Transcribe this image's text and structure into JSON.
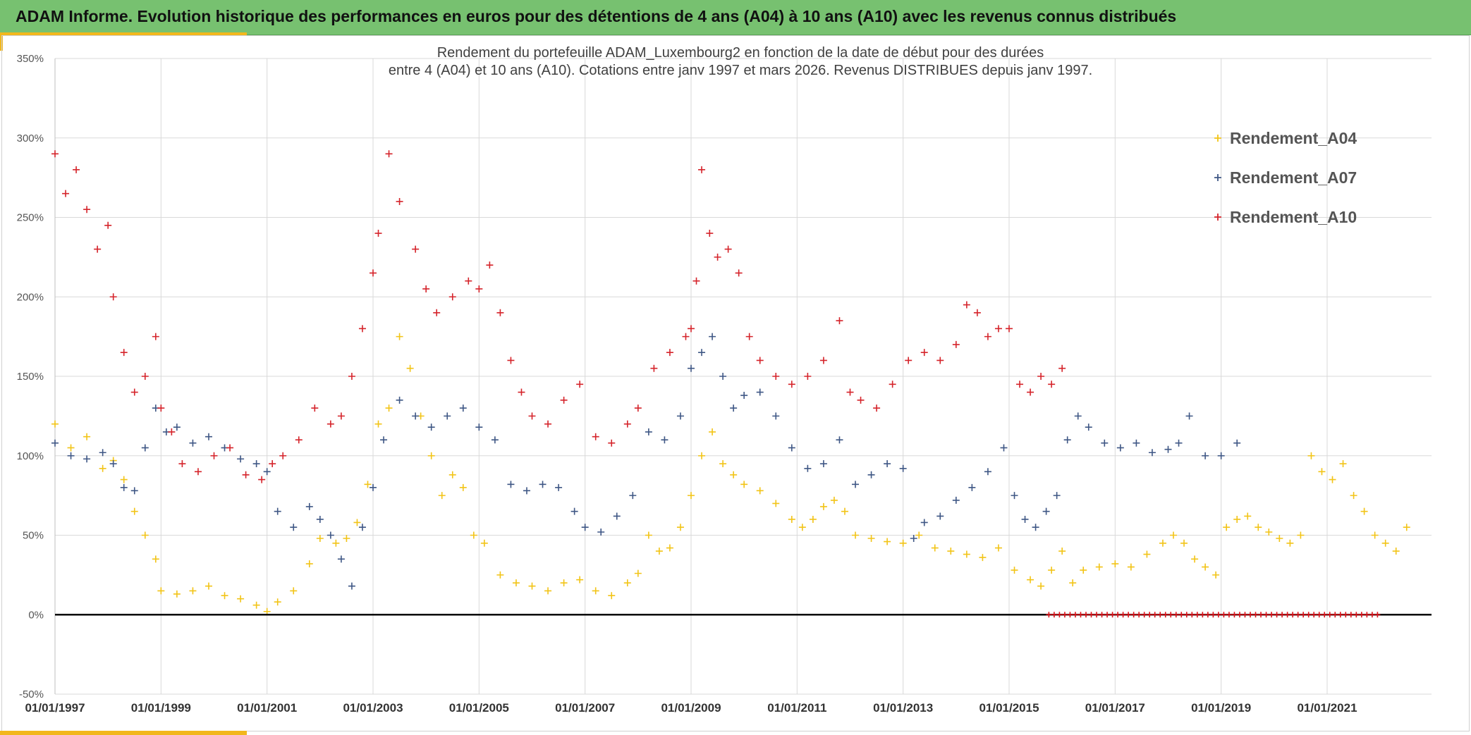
{
  "header": {
    "title": "ADAM Informe. Evolution historique des performances en euros pour des détentions de 4 ans (A04) à 10 ans (A10) avec les revenus connus distribués"
  },
  "chart_data": {
    "type": "scatter",
    "title_lines": [
      "Rendement du portefeuille ADAM_Luxembourg2  en fonction de la date de début pour des durées",
      "entre 4 (A04) et 10 ans (A10). Cotations entre janv 1997 et mars 2026. Revenus DISTRIBUES depuis janv 1997."
    ],
    "xlabel": "",
    "ylabel": "",
    "x_range": [
      1997.0,
      2022.0
    ],
    "ylim": [
      -50,
      350
    ],
    "y_ticks": [
      -50,
      0,
      50,
      100,
      150,
      200,
      250,
      300,
      350
    ],
    "y_tick_labels": [
      "-50%",
      "0%",
      "50%",
      "100%",
      "150%",
      "200%",
      "250%",
      "300%",
      "350%"
    ],
    "x_ticks": [
      1997,
      1999,
      2001,
      2003,
      2005,
      2007,
      2009,
      2011,
      2013,
      2015,
      2017,
      2019,
      2021
    ],
    "x_tick_labels": [
      "01/01/1997",
      "01/01/1999",
      "01/01/2001",
      "01/01/2003",
      "01/01/2005",
      "01/01/2007",
      "01/01/2009",
      "01/01/2011",
      "01/01/2013",
      "01/01/2015",
      "01/01/2017",
      "01/01/2019",
      "01/01/2021"
    ],
    "grid": true,
    "legend_position": "top-right",
    "marker": "+",
    "series": [
      {
        "name": "Rendement_A04",
        "color": "#f2c417",
        "x": [
          1997.0,
          1997.3,
          1997.6,
          1997.9,
          1998.1,
          1998.3,
          1998.5,
          1998.7,
          1998.9,
          1999.0,
          1999.3,
          1999.6,
          1999.9,
          2000.2,
          2000.5,
          2000.8,
          2001.0,
          2001.2,
          2001.5,
          2001.8,
          2002.0,
          2002.3,
          2002.5,
          2002.7,
          2002.9,
          2003.1,
          2003.3,
          2003.5,
          2003.7,
          2003.9,
          2004.1,
          2004.3,
          2004.5,
          2004.7,
          2004.9,
          2005.1,
          2005.4,
          2005.7,
          2006.0,
          2006.3,
          2006.6,
          2006.9,
          2007.2,
          2007.5,
          2007.8,
          2008.0,
          2008.2,
          2008.4,
          2008.6,
          2008.8,
          2009.0,
          2009.2,
          2009.4,
          2009.6,
          2009.8,
          2010.0,
          2010.3,
          2010.6,
          2010.9,
          2011.1,
          2011.3,
          2011.5,
          2011.7,
          2011.9,
          2012.1,
          2012.4,
          2012.7,
          2013.0,
          2013.3,
          2013.6,
          2013.9,
          2014.2,
          2014.5,
          2014.8,
          2015.1,
          2015.4,
          2015.6,
          2015.8,
          2016.0,
          2016.2,
          2016.4,
          2016.7,
          2017.0,
          2017.3,
          2017.6,
          2017.9,
          2018.1,
          2018.3,
          2018.5,
          2018.7,
          2018.9,
          2019.1,
          2019.3,
          2019.5,
          2019.7,
          2019.9,
          2020.1,
          2020.3,
          2020.5,
          2020.7,
          2020.9,
          2021.1,
          2021.3,
          2021.5,
          2021.7,
          2021.9,
          2022.1,
          2022.3,
          2022.5
        ],
        "y": [
          120,
          105,
          112,
          92,
          97,
          85,
          65,
          50,
          35,
          15,
          13,
          15,
          18,
          12,
          10,
          6,
          2,
          8,
          15,
          32,
          48,
          45,
          48,
          58,
          82,
          120,
          130,
          175,
          155,
          125,
          100,
          75,
          88,
          80,
          50,
          45,
          25,
          20,
          18,
          15,
          20,
          22,
          15,
          12,
          20,
          26,
          50,
          40,
          42,
          55,
          75,
          100,
          115,
          95,
          88,
          82,
          78,
          70,
          60,
          55,
          60,
          68,
          72,
          65,
          50,
          48,
          46,
          45,
          50,
          42,
          40,
          38,
          36,
          42,
          28,
          22,
          18,
          28,
          40,
          20,
          28,
          30,
          32,
          30,
          38,
          45,
          50,
          45,
          35,
          30,
          25,
          55,
          60,
          62,
          55,
          52,
          48,
          45,
          50,
          100,
          90,
          85,
          95,
          75,
          65,
          50,
          45,
          40,
          55
        ]
      },
      {
        "name": "Rendement_A07",
        "color": "#3f5785",
        "x": [
          1997.0,
          1997.3,
          1997.6,
          1997.9,
          1998.1,
          1998.3,
          1998.5,
          1998.7,
          1998.9,
          1999.1,
          1999.3,
          1999.6,
          1999.9,
          2000.2,
          2000.5,
          2000.8,
          2001.0,
          2001.2,
          2001.5,
          2001.8,
          2002.0,
          2002.2,
          2002.4,
          2002.6,
          2002.8,
          2003.0,
          2003.2,
          2003.5,
          2003.8,
          2004.1,
          2004.4,
          2004.7,
          2005.0,
          2005.3,
          2005.6,
          2005.9,
          2006.2,
          2006.5,
          2006.8,
          2007.0,
          2007.3,
          2007.6,
          2007.9,
          2008.2,
          2008.5,
          2008.8,
          2009.0,
          2009.2,
          2009.4,
          2009.6,
          2009.8,
          2010.0,
          2010.3,
          2010.6,
          2010.9,
          2011.2,
          2011.5,
          2011.8,
          2012.1,
          2012.4,
          2012.7,
          2013.0,
          2013.2,
          2013.4,
          2013.7,
          2014.0,
          2014.3,
          2014.6,
          2014.9,
          2015.1,
          2015.3,
          2015.5,
          2015.7,
          2015.9,
          2016.1,
          2016.3,
          2016.5,
          2016.8,
          2017.1,
          2017.4,
          2017.7,
          2018.0,
          2018.2,
          2018.4,
          2018.7,
          2019.0,
          2019.3
        ],
        "y": [
          108,
          100,
          98,
          102,
          95,
          80,
          78,
          105,
          130,
          115,
          118,
          108,
          112,
          105,
          98,
          95,
          90,
          65,
          55,
          68,
          60,
          50,
          35,
          18,
          55,
          80,
          110,
          135,
          125,
          118,
          125,
          130,
          118,
          110,
          82,
          78,
          82,
          80,
          65,
          55,
          52,
          62,
          75,
          115,
          110,
          125,
          155,
          165,
          175,
          150,
          130,
          138,
          140,
          125,
          105,
          92,
          95,
          110,
          82,
          88,
          95,
          92,
          48,
          58,
          62,
          72,
          80,
          90,
          105,
          75,
          60,
          55,
          65,
          75,
          110,
          125,
          118,
          108,
          105,
          108,
          102,
          104,
          108,
          125,
          100,
          100,
          108
        ]
      },
      {
        "name": "Rendement_A10",
        "color": "#d5242b",
        "x": [
          1997.0,
          1997.2,
          1997.4,
          1997.6,
          1997.8,
          1998.0,
          1998.1,
          1998.3,
          1998.5,
          1998.7,
          1998.9,
          1999.0,
          1999.2,
          1999.4,
          1999.7,
          2000.0,
          2000.3,
          2000.6,
          2000.9,
          2001.1,
          2001.3,
          2001.6,
          2001.9,
          2002.2,
          2002.4,
          2002.6,
          2002.8,
          2003.0,
          2003.1,
          2003.3,
          2003.5,
          2003.8,
          2004.0,
          2004.2,
          2004.5,
          2004.8,
          2005.0,
          2005.2,
          2005.4,
          2005.6,
          2005.8,
          2006.0,
          2006.3,
          2006.6,
          2006.9,
          2007.2,
          2007.5,
          2007.8,
          2008.0,
          2008.3,
          2008.6,
          2008.9,
          2009.0,
          2009.1,
          2009.2,
          2009.35,
          2009.5,
          2009.7,
          2009.9,
          2010.1,
          2010.3,
          2010.6,
          2010.9,
          2011.2,
          2011.5,
          2011.8,
          2012.0,
          2012.2,
          2012.5,
          2012.8,
          2013.1,
          2013.4,
          2013.7,
          2014.0,
          2014.2,
          2014.4,
          2014.6,
          2014.8,
          2015.0,
          2015.2,
          2015.4,
          2015.6,
          2015.8,
          2016.0
        ],
        "y": [
          290,
          265,
          280,
          255,
          230,
          245,
          200,
          165,
          140,
          150,
          175,
          130,
          115,
          95,
          90,
          100,
          105,
          88,
          85,
          95,
          100,
          110,
          130,
          120,
          125,
          150,
          180,
          215,
          240,
          290,
          260,
          230,
          205,
          190,
          200,
          210,
          205,
          220,
          190,
          160,
          140,
          125,
          120,
          135,
          145,
          112,
          108,
          120,
          130,
          155,
          165,
          175,
          180,
          210,
          280,
          240,
          225,
          230,
          215,
          175,
          160,
          150,
          145,
          150,
          160,
          185,
          140,
          135,
          130,
          145,
          160,
          165,
          160,
          170,
          195,
          190,
          175,
          180,
          180,
          145,
          140,
          150,
          145,
          155
        ]
      }
    ],
    "zero_series": {
      "name": "Rendement_A10",
      "color": "#e0141b",
      "x_start": 2015.75,
      "x_end": 2022.0,
      "value": 0
    }
  }
}
